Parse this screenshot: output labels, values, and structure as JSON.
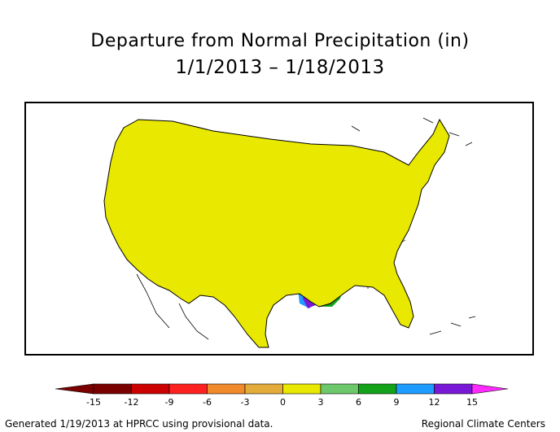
{
  "title": "Departure from Normal Precipitation (in)",
  "subtitle": "1/1/2013 – 1/18/2013",
  "legend": {
    "bins": [
      {
        "label": "-15",
        "color": "#7a0000"
      },
      {
        "label": "-12",
        "color": "#cc0000"
      },
      {
        "label": "-9",
        "color": "#ff2020"
      },
      {
        "label": "-6",
        "color": "#f08a2a"
      },
      {
        "label": "-3",
        "color": "#e3ab3a"
      },
      {
        "label": "0",
        "color": "#e8e800"
      },
      {
        "label": "3",
        "color": "#6cc86a"
      },
      {
        "label": "6",
        "color": "#13a21a"
      },
      {
        "label": "9",
        "color": "#1f9cff"
      },
      {
        "label": "12",
        "color": "#7a18d8"
      },
      {
        "label": "15",
        "color": "#a81cb8"
      }
    ],
    "low_arrow_color": "#7a0000",
    "high_arrow_color": "#ff2aff"
  },
  "map_colors": {
    "base": "#e8e800",
    "light_green": "#6cc86a",
    "green": "#13a21a",
    "blue": "#1f9cff",
    "purple": "#7a18d8",
    "orange": "#e3ab3a"
  },
  "footer": {
    "left": "Generated 1/19/2013 at HPRCC using provisional data.",
    "right": "Regional Climate Centers"
  }
}
